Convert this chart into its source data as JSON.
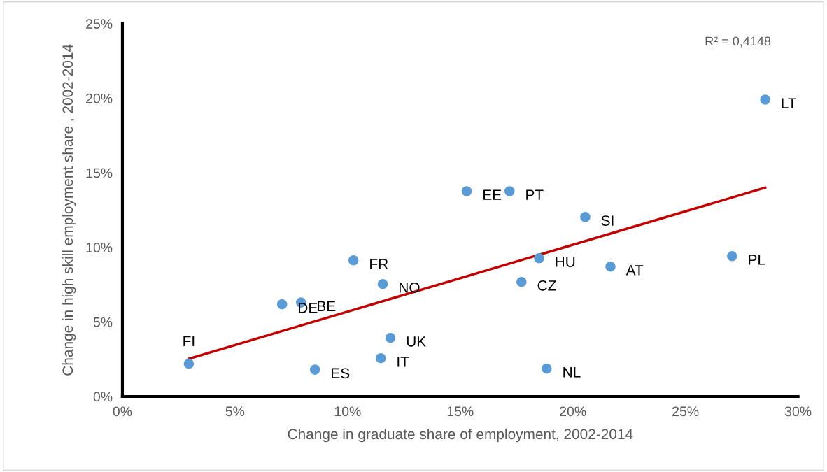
{
  "chart_data": {
    "type": "scatter",
    "xlabel": "Change in graduate share of employment, 2002-2014",
    "ylabel": "Change in high skill employment share , 2002-2014",
    "xlim": [
      0,
      30
    ],
    "ylim": [
      0,
      25
    ],
    "xticks": [
      {
        "value": 0,
        "label": "0%"
      },
      {
        "value": 5,
        "label": "5%"
      },
      {
        "value": 10,
        "label": "10%"
      },
      {
        "value": 15,
        "label": "15%"
      },
      {
        "value": 20,
        "label": "20%"
      },
      {
        "value": 25,
        "label": "25%"
      },
      {
        "value": 30,
        "label": "30%"
      }
    ],
    "yticks": [
      {
        "value": 0,
        "label": "0%"
      },
      {
        "value": 5,
        "label": "5%"
      },
      {
        "value": 10,
        "label": "10%"
      },
      {
        "value": 15,
        "label": "15%"
      },
      {
        "value": 20,
        "label": "20%"
      },
      {
        "value": 25,
        "label": "25%"
      }
    ],
    "grid": false,
    "legend": false,
    "series": [
      {
        "color": "#5b9bd5",
        "marker": "circle",
        "x": [
          2.95,
          8.55,
          7.09,
          7.93,
          10.26,
          11.56,
          11.9,
          11.47,
          15.29,
          17.19,
          20.55,
          18.5,
          17.72,
          18.84,
          21.67,
          27.07,
          28.54
        ],
        "values": [
          2.2,
          1.8,
          6.18,
          6.3,
          9.13,
          7.54,
          3.93,
          2.57,
          13.76,
          13.76,
          12.03,
          9.27,
          7.68,
          1.87,
          8.71,
          9.41,
          19.9
        ]
      },
      {
        "type": "line",
        "color": "#c00000",
        "marker": "none",
        "x": [
          2.95,
          28.54
        ],
        "values": [
          2.53,
          14.0
        ]
      }
    ],
    "annotations": [
      {
        "text": "FI",
        "x": 2.95,
        "y": 2.2
      },
      {
        "text": "ES",
        "x": 8.55,
        "y": 1.8
      },
      {
        "text": "DE",
        "x": 7.09,
        "y": 6.18
      },
      {
        "text": "BE",
        "x": 7.93,
        "y": 6.3
      },
      {
        "text": "FR",
        "x": 10.26,
        "y": 9.13
      },
      {
        "text": "NO",
        "x": 11.56,
        "y": 7.54
      },
      {
        "text": "UK",
        "x": 11.9,
        "y": 3.93
      },
      {
        "text": "IT",
        "x": 11.47,
        "y": 2.57
      },
      {
        "text": "EE",
        "x": 15.29,
        "y": 13.76
      },
      {
        "text": "PT",
        "x": 17.19,
        "y": 13.76
      },
      {
        "text": "SI",
        "x": 20.55,
        "y": 12.03
      },
      {
        "text": "HU",
        "x": 18.5,
        "y": 9.27
      },
      {
        "text": "CZ",
        "x": 17.72,
        "y": 7.68
      },
      {
        "text": "NL",
        "x": 18.84,
        "y": 1.87
      },
      {
        "text": "AT",
        "x": 21.67,
        "y": 8.71
      },
      {
        "text": "PL",
        "x": 27.07,
        "y": 9.41
      },
      {
        "text": "LT",
        "x": 28.54,
        "y": 19.9
      },
      "R² = 0,4148"
    ]
  }
}
